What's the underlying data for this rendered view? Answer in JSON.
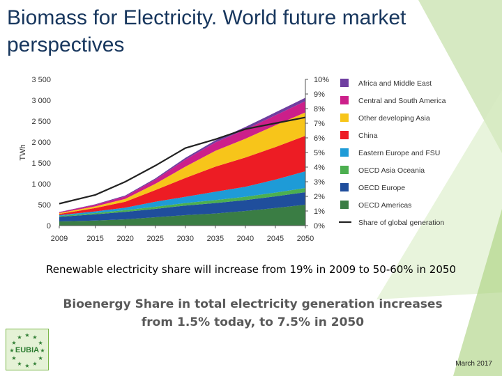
{
  "slide": {
    "title": "Biomass for Electricity. World future market perspectives",
    "caption_primary": "Renewable electricity share will increase from 19% in 2009 to 50-60% in 2050",
    "caption_secondary": "Bioenergy Share in total electricity generation increases from 1.5% today, to 7.5% in 2050",
    "footer_date": "March 2017",
    "logo_text": "EUBIA",
    "accent_color": "#7ab648"
  },
  "chart_data": {
    "type": "area",
    "stacked": true,
    "ylabel": "TWh",
    "ylim": [
      0,
      3500
    ],
    "yticks": [
      "0",
      "500",
      "1 000",
      "1 500",
      "2 000",
      "2 500",
      "3 000",
      "3 500"
    ],
    "y2lim": [
      0,
      10
    ],
    "y2ticks": [
      "0%",
      "1%",
      "2%",
      "3%",
      "4%",
      "5%",
      "6%",
      "7%",
      "8%",
      "9%",
      "10%"
    ],
    "x": [
      2009,
      2015,
      2020,
      2025,
      2030,
      2035,
      2040,
      2045,
      2050
    ],
    "xticks": [
      "2009",
      "2015",
      "2020",
      "2025",
      "2030",
      "2035",
      "2040",
      "2045",
      "2050"
    ],
    "legend_position": "right",
    "series": [
      {
        "name": "OECD Americas",
        "color": "#3a7d44",
        "values": [
          100,
          120,
          150,
          200,
          250,
          290,
          350,
          420,
          500
        ]
      },
      {
        "name": "OECD Europe",
        "color": "#1f4e9c",
        "values": [
          110,
          150,
          180,
          200,
          230,
          250,
          260,
          280,
          300
        ]
      },
      {
        "name": "OECD Asia Oceania",
        "color": "#4caf50",
        "values": [
          20,
          30,
          40,
          50,
          60,
          70,
          80,
          90,
          100
        ]
      },
      {
        "name": "Eastern Europe and FSU",
        "color": "#1e9bd7",
        "values": [
          20,
          40,
          60,
          120,
          150,
          200,
          240,
          310,
          400
        ]
      },
      {
        "name": "China",
        "color": "#ed1c24",
        "values": [
          30,
          80,
          140,
          280,
          450,
          600,
          700,
          780,
          850
        ]
      },
      {
        "name": "Other developing Asia",
        "color": "#f7c51a",
        "values": [
          20,
          40,
          70,
          150,
          270,
          380,
          450,
          520,
          560
        ]
      },
      {
        "name": "Central and South America",
        "color": "#cc1f8a",
        "values": [
          20,
          40,
          60,
          100,
          170,
          200,
          220,
          240,
          270
        ]
      },
      {
        "name": "Africa and Middle East",
        "color": "#6f3ea0",
        "values": [
          5,
          10,
          20,
          30,
          40,
          50,
          60,
          70,
          80
        ]
      }
    ],
    "line_series": {
      "name": "Share of global generation",
      "axis": "right",
      "color": "#222222",
      "values": [
        1.5,
        2.1,
        3.0,
        4.1,
        5.3,
        5.9,
        6.6,
        7.0,
        7.4
      ]
    }
  }
}
